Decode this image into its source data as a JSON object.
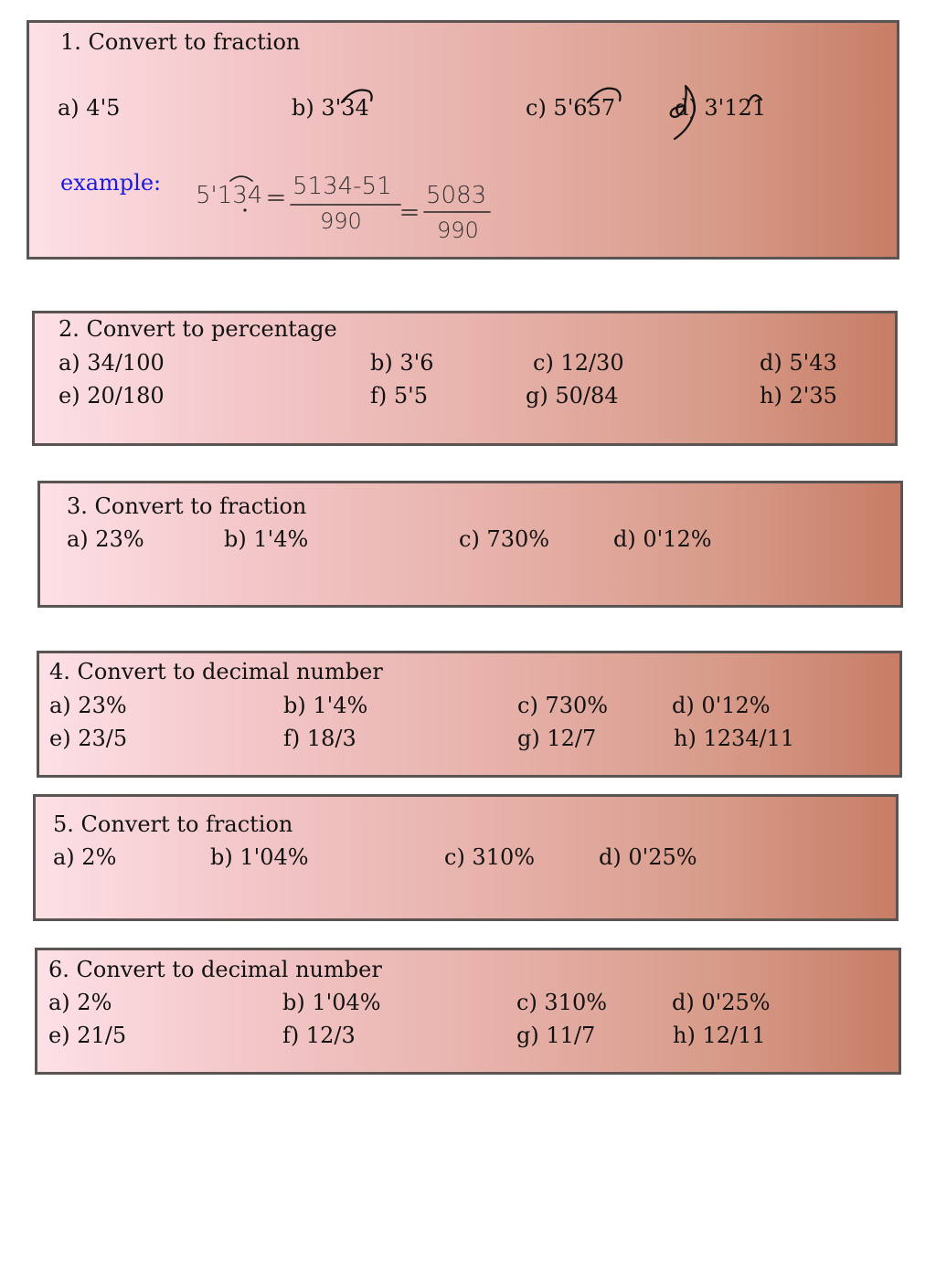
{
  "sections": [
    {
      "title": "1. Convert to fraction",
      "items": [
        "a) 4'5",
        "b) 3'34",
        "c) 5'657",
        "d) 3'121"
      ],
      "example_label": "example:",
      "example_work": {
        "number": "5'134",
        "numerator_1": "5134-51",
        "denominator_1": "990",
        "numerator_2": "5083",
        "denominator_2": "990"
      }
    },
    {
      "title": "2. Convert to percentage",
      "items": [
        "a) 34/100",
        "b) 3'6",
        "c) 12/30",
        "d) 5'43",
        "e) 20/180",
        "f) 5'5",
        "g) 50/84",
        "h) 2'35"
      ]
    },
    {
      "title": "3. Convert to fraction",
      "items": [
        "a) 23%",
        "b) 1'4%",
        "c) 730%",
        "d) 0'12%"
      ]
    },
    {
      "title": "4. Convert to decimal number",
      "items": [
        "a) 23%",
        "b) 1'4%",
        "c) 730%",
        "d) 0'12%",
        "e) 23/5",
        "f) 18/3",
        "g) 12/7",
        "h) 1234/11"
      ]
    },
    {
      "title": "5. Convert to fraction",
      "items": [
        "a) 2%",
        "b) 1'04%",
        "c) 310%",
        "d) 0'25%"
      ]
    },
    {
      "title": "6. Convert to decimal number",
      "items": [
        "a) 2%",
        "b) 1'04%",
        "c) 310%",
        "d) 0'25%",
        "e) 21/5",
        "f) 12/3",
        "g) 11/7",
        "h) 12/11"
      ]
    }
  ]
}
